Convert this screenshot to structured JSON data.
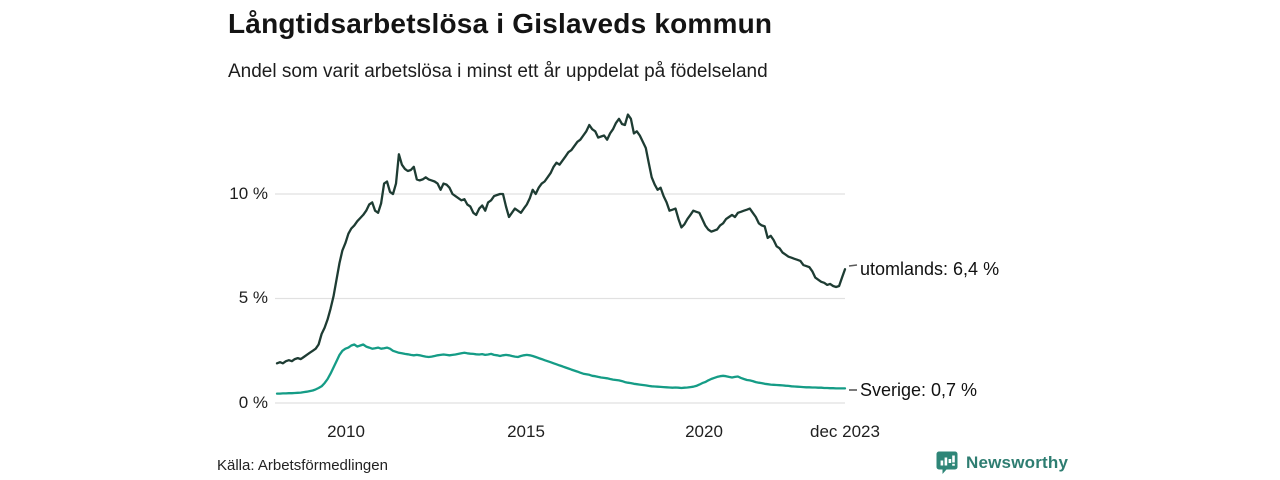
{
  "header": {
    "title": "Långtidsarbetslösa i Gislaveds kommun",
    "subtitle": "Andel som varit arbetslösa i minst ett år uppdelat på födelseland"
  },
  "footer": {
    "source": "Källa: Arbetsförmedlingen",
    "brand": "Newsworthy",
    "brand_icon": "newsworthy-speech-bubble-bar-chart",
    "brand_color": "#2e7d71"
  },
  "chart_data": {
    "type": "line",
    "title": "Långtidsarbetslösa i Gislaveds kommun",
    "subtitle": "Andel som varit arbetslösa i minst ett år uppdelat på födelseland",
    "x_unit": "month",
    "x_start": "2008-01",
    "x_end": "2023-12",
    "x_ticks": [
      "2010",
      "2015",
      "2020",
      "dec 2023"
    ],
    "y_ticks": [
      {
        "value": 0,
        "label": "0 %"
      },
      {
        "value": 5,
        "label": "5 %"
      },
      {
        "value": 10,
        "label": "10 %"
      }
    ],
    "ylim": [
      0,
      14
    ],
    "grid": "horizontal",
    "legend": "end-of-line-annotations",
    "gridline_color": "#e1e1e1",
    "series": [
      {
        "name": "utomlands",
        "annotation": "utomlands: 6,4 %",
        "last_value_label": "6,4 %",
        "color": "#1e3c33",
        "values": [
          1.9,
          1.95,
          1.9,
          2.0,
          2.05,
          2.0,
          2.1,
          2.15,
          2.1,
          2.2,
          2.3,
          2.4,
          2.5,
          2.6,
          2.8,
          3.3,
          3.6,
          4.0,
          4.5,
          5.1,
          5.9,
          6.7,
          7.3,
          7.65,
          8.1,
          8.35,
          8.5,
          8.7,
          8.85,
          9.0,
          9.2,
          9.5,
          9.6,
          9.2,
          9.1,
          9.55,
          10.5,
          10.6,
          10.1,
          10.0,
          10.5,
          11.9,
          11.4,
          11.2,
          11.1,
          11.15,
          11.3,
          10.7,
          10.65,
          10.7,
          10.8,
          10.7,
          10.65,
          10.6,
          10.5,
          10.2,
          10.5,
          10.45,
          10.3,
          10.0,
          9.9,
          9.8,
          9.7,
          9.75,
          9.5,
          9.4,
          9.1,
          9.0,
          9.3,
          9.45,
          9.2,
          9.6,
          9.7,
          9.9,
          9.95,
          10.0,
          10.0,
          9.4,
          8.9,
          9.1,
          9.3,
          9.2,
          9.1,
          9.3,
          9.5,
          9.8,
          10.2,
          10.0,
          10.3,
          10.5,
          10.6,
          10.8,
          11.0,
          11.3,
          11.5,
          11.4,
          11.6,
          11.8,
          12.0,
          12.1,
          12.3,
          12.5,
          12.6,
          12.8,
          13.0,
          13.3,
          13.1,
          13.0,
          12.7,
          12.75,
          12.8,
          12.6,
          12.9,
          13.1,
          13.4,
          13.6,
          13.35,
          13.3,
          13.8,
          13.6,
          12.9,
          13.0,
          12.8,
          12.5,
          12.2,
          11.5,
          10.8,
          10.45,
          10.2,
          10.3,
          9.9,
          9.6,
          9.2,
          9.25,
          9.3,
          8.8,
          8.4,
          8.55,
          8.8,
          9.0,
          9.2,
          9.15,
          9.1,
          8.8,
          8.5,
          8.3,
          8.2,
          8.25,
          8.3,
          8.5,
          8.6,
          8.8,
          8.9,
          9.0,
          8.9,
          9.1,
          9.15,
          9.2,
          9.25,
          9.3,
          9.1,
          8.9,
          8.6,
          8.5,
          8.45,
          7.9,
          8.0,
          7.8,
          7.5,
          7.4,
          7.2,
          7.1,
          7.0,
          6.95,
          6.9,
          6.85,
          6.8,
          6.6,
          6.55,
          6.5,
          6.3,
          6.0,
          5.9,
          5.8,
          5.75,
          5.65,
          5.7,
          5.6,
          5.55,
          5.6,
          6.0,
          6.4
        ]
      },
      {
        "name": "Sverige",
        "annotation": "Sverige: 0,7 %",
        "last_value_label": "0,7 %",
        "color": "#159c86",
        "values": [
          0.45,
          0.45,
          0.46,
          0.46,
          0.47,
          0.47,
          0.48,
          0.49,
          0.5,
          0.52,
          0.54,
          0.57,
          0.6,
          0.65,
          0.72,
          0.8,
          0.95,
          1.15,
          1.4,
          1.7,
          2.0,
          2.3,
          2.5,
          2.6,
          2.65,
          2.75,
          2.8,
          2.7,
          2.75,
          2.8,
          2.7,
          2.65,
          2.6,
          2.62,
          2.65,
          2.6,
          2.62,
          2.65,
          2.6,
          2.5,
          2.45,
          2.4,
          2.38,
          2.35,
          2.33,
          2.3,
          2.28,
          2.3,
          2.28,
          2.25,
          2.22,
          2.2,
          2.22,
          2.25,
          2.28,
          2.3,
          2.32,
          2.3,
          2.28,
          2.3,
          2.32,
          2.35,
          2.38,
          2.4,
          2.38,
          2.36,
          2.35,
          2.33,
          2.32,
          2.34,
          2.3,
          2.32,
          2.35,
          2.3,
          2.28,
          2.25,
          2.28,
          2.3,
          2.28,
          2.25,
          2.22,
          2.2,
          2.25,
          2.28,
          2.3,
          2.28,
          2.25,
          2.2,
          2.15,
          2.1,
          2.05,
          2.0,
          1.95,
          1.9,
          1.85,
          1.8,
          1.75,
          1.7,
          1.65,
          1.6,
          1.55,
          1.5,
          1.45,
          1.4,
          1.38,
          1.35,
          1.3,
          1.28,
          1.25,
          1.22,
          1.2,
          1.18,
          1.15,
          1.12,
          1.1,
          1.08,
          1.05,
          1.0,
          0.97,
          0.95,
          0.92,
          0.9,
          0.88,
          0.86,
          0.84,
          0.82,
          0.8,
          0.79,
          0.78,
          0.77,
          0.76,
          0.75,
          0.74,
          0.73,
          0.74,
          0.73,
          0.72,
          0.73,
          0.74,
          0.76,
          0.78,
          0.82,
          0.88,
          0.95,
          1.0,
          1.08,
          1.15,
          1.2,
          1.25,
          1.28,
          1.3,
          1.28,
          1.25,
          1.22,
          1.25,
          1.27,
          1.2,
          1.15,
          1.1,
          1.08,
          1.05,
          1.0,
          0.97,
          0.95,
          0.92,
          0.9,
          0.88,
          0.87,
          0.86,
          0.85,
          0.84,
          0.83,
          0.82,
          0.8,
          0.79,
          0.78,
          0.77,
          0.76,
          0.75,
          0.75,
          0.74,
          0.74,
          0.73,
          0.73,
          0.72,
          0.72,
          0.71,
          0.71,
          0.7,
          0.7,
          0.7,
          0.7
        ]
      }
    ]
  }
}
